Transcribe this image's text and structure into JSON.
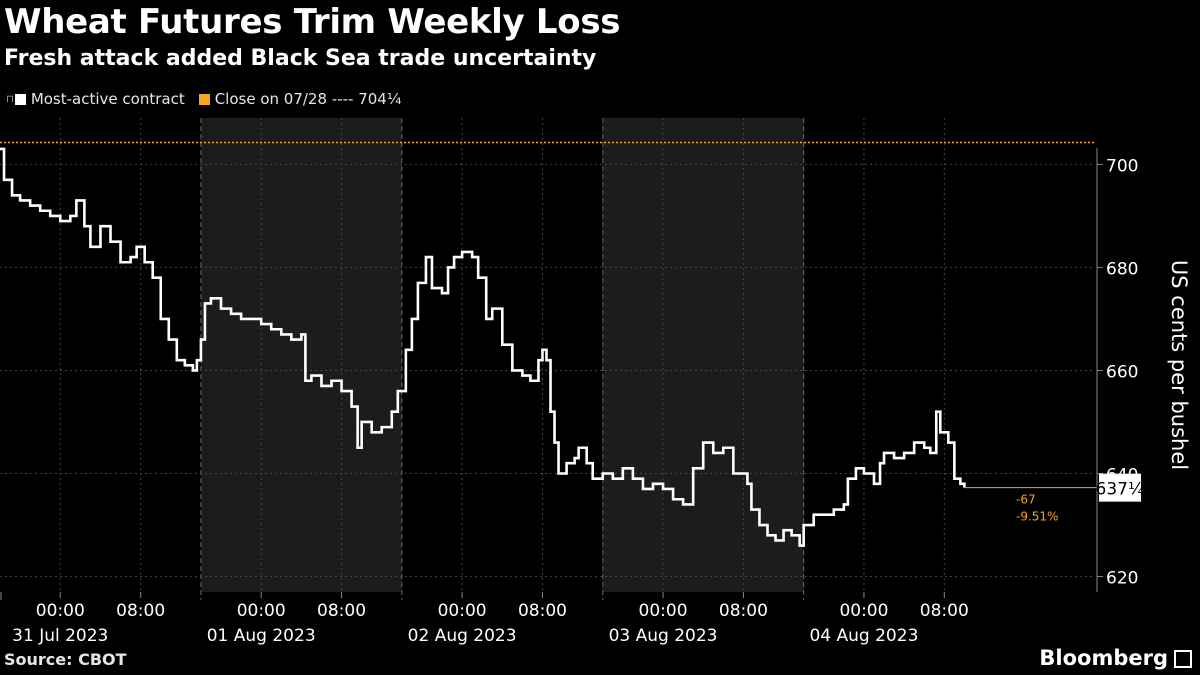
{
  "header": {
    "title": "Wheat Futures Trim Weekly Loss",
    "subtitle": "Fresh attack added Black Sea trade uncertainty"
  },
  "legend": {
    "series_label": "Most-active contract",
    "reference_label": "Close on 07/28 ---- 704¹⁄₄"
  },
  "footer": {
    "source": "Source: CBOT",
    "brand": "Bloomberg"
  },
  "colors": {
    "series": "#ffffff",
    "reference": "#f5a623",
    "shade": "#1c1c1c",
    "grid": "#444444"
  },
  "chart_data": {
    "type": "line",
    "ylabel": "US cents per bushel",
    "ylim": [
      617,
      709
    ],
    "yticks": [
      620,
      640,
      660,
      680,
      700
    ],
    "x_domain": [
      0,
      5.45
    ],
    "x_ticks": [
      {
        "x": 0.3,
        "time": "00:00",
        "date": "31 Jul 2023"
      },
      {
        "x": 0.7,
        "time": "08:00",
        "date": ""
      },
      {
        "x": 1.3,
        "time": "00:00",
        "date": "01 Aug 2023"
      },
      {
        "x": 1.7,
        "time": "08:00",
        "date": ""
      },
      {
        "x": 2.3,
        "time": "00:00",
        "date": "02 Aug 2023"
      },
      {
        "x": 2.7,
        "time": "08:00",
        "date": ""
      },
      {
        "x": 3.3,
        "time": "00:00",
        "date": "03 Aug 2023"
      },
      {
        "x": 3.7,
        "time": "08:00",
        "date": ""
      },
      {
        "x": 4.3,
        "time": "00:00",
        "date": "04 Aug 2023"
      },
      {
        "x": 4.7,
        "time": "08:00",
        "date": ""
      }
    ],
    "day_boundaries": [
      1.0,
      2.0,
      3.0,
      4.0
    ],
    "shaded_days": [
      [
        1.0,
        2.0
      ],
      [
        3.0,
        4.0
      ]
    ],
    "reference_value": 704.25,
    "series": [
      {
        "points": [
          [
            0.0,
            703
          ],
          [
            0.02,
            697
          ],
          [
            0.06,
            694
          ],
          [
            0.1,
            693
          ],
          [
            0.15,
            692
          ],
          [
            0.2,
            691
          ],
          [
            0.25,
            690
          ],
          [
            0.3,
            689
          ],
          [
            0.35,
            690
          ],
          [
            0.38,
            693
          ],
          [
            0.42,
            688
          ],
          [
            0.45,
            684
          ],
          [
            0.5,
            688
          ],
          [
            0.55,
            685
          ],
          [
            0.6,
            681
          ],
          [
            0.65,
            682
          ],
          [
            0.68,
            684
          ],
          [
            0.72,
            681
          ],
          [
            0.76,
            678
          ],
          [
            0.8,
            670
          ],
          [
            0.84,
            666
          ],
          [
            0.88,
            662
          ],
          [
            0.92,
            661
          ],
          [
            0.96,
            660
          ],
          [
            0.98,
            662
          ],
          [
            1.0,
            666
          ],
          [
            1.02,
            673
          ],
          [
            1.05,
            674
          ],
          [
            1.1,
            672
          ],
          [
            1.15,
            671
          ],
          [
            1.2,
            670
          ],
          [
            1.25,
            670
          ],
          [
            1.3,
            669
          ],
          [
            1.35,
            668
          ],
          [
            1.4,
            667
          ],
          [
            1.45,
            666
          ],
          [
            1.5,
            667
          ],
          [
            1.52,
            658
          ],
          [
            1.55,
            659
          ],
          [
            1.6,
            657
          ],
          [
            1.65,
            658
          ],
          [
            1.7,
            656
          ],
          [
            1.75,
            653
          ],
          [
            1.78,
            645
          ],
          [
            1.8,
            650
          ],
          [
            1.85,
            648
          ],
          [
            1.9,
            649
          ],
          [
            1.95,
            652
          ],
          [
            1.98,
            656
          ],
          [
            2.02,
            664
          ],
          [
            2.05,
            670
          ],
          [
            2.08,
            677
          ],
          [
            2.12,
            682
          ],
          [
            2.15,
            676
          ],
          [
            2.2,
            675
          ],
          [
            2.23,
            680
          ],
          [
            2.26,
            682
          ],
          [
            2.3,
            683
          ],
          [
            2.35,
            682
          ],
          [
            2.38,
            678
          ],
          [
            2.42,
            670
          ],
          [
            2.45,
            672
          ],
          [
            2.5,
            665
          ],
          [
            2.55,
            660
          ],
          [
            2.6,
            659
          ],
          [
            2.64,
            658
          ],
          [
            2.68,
            662
          ],
          [
            2.7,
            664
          ],
          [
            2.72,
            662
          ],
          [
            2.74,
            652
          ],
          [
            2.76,
            646
          ],
          [
            2.78,
            640
          ],
          [
            2.82,
            642
          ],
          [
            2.86,
            643
          ],
          [
            2.88,
            645
          ],
          [
            2.92,
            642
          ],
          [
            2.95,
            639
          ],
          [
            3.0,
            640
          ],
          [
            3.05,
            639
          ],
          [
            3.1,
            641
          ],
          [
            3.15,
            639
          ],
          [
            3.2,
            637
          ],
          [
            3.25,
            638
          ],
          [
            3.3,
            637
          ],
          [
            3.35,
            635
          ],
          [
            3.4,
            634
          ],
          [
            3.45,
            641
          ],
          [
            3.5,
            646
          ],
          [
            3.55,
            644
          ],
          [
            3.6,
            645
          ],
          [
            3.65,
            640
          ],
          [
            3.7,
            640
          ],
          [
            3.72,
            638
          ],
          [
            3.74,
            633
          ],
          [
            3.78,
            630
          ],
          [
            3.82,
            628
          ],
          [
            3.86,
            627
          ],
          [
            3.9,
            629
          ],
          [
            3.94,
            628
          ],
          [
            3.98,
            626
          ],
          [
            4.0,
            630
          ],
          [
            4.05,
            632
          ],
          [
            4.1,
            632
          ],
          [
            4.15,
            633
          ],
          [
            4.2,
            634
          ],
          [
            4.22,
            639
          ],
          [
            4.26,
            641
          ],
          [
            4.3,
            640
          ],
          [
            4.35,
            638
          ],
          [
            4.38,
            642
          ],
          [
            4.4,
            644
          ],
          [
            4.45,
            643
          ],
          [
            4.5,
            644
          ],
          [
            4.55,
            646
          ],
          [
            4.6,
            645
          ],
          [
            4.63,
            644
          ],
          [
            4.66,
            652
          ],
          [
            4.68,
            648
          ],
          [
            4.72,
            646
          ],
          [
            4.75,
            639
          ],
          [
            4.78,
            638
          ],
          [
            4.8,
            637.25
          ]
        ]
      }
    ],
    "last_value_label": "637¹⁄₄",
    "change_abs": "-67",
    "change_pct": "-9.51%"
  }
}
